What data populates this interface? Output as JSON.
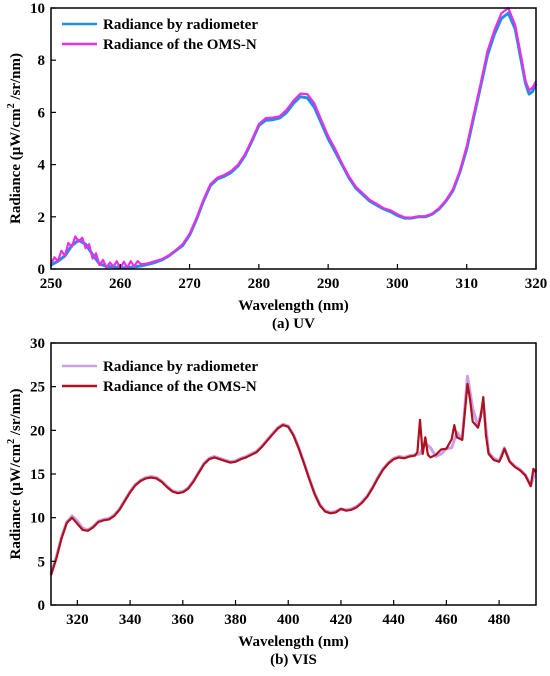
{
  "chart_data": [
    {
      "type": "line",
      "caption": "(a) UV",
      "xlabel": "Wavelength (nm)",
      "ylabel_main": "Radiance (μW/cm",
      "ylabel_sup": "2",
      "ylabel_tail": " /sr/nm)",
      "xlim": [
        250,
        320
      ],
      "ylim": [
        0,
        10
      ],
      "xticks": [
        250,
        260,
        270,
        280,
        290,
        300,
        310,
        320
      ],
      "yticks": [
        0,
        2,
        4,
        6,
        8,
        10
      ],
      "grid": false,
      "legend_position": "top-left",
      "series": [
        {
          "name": "Radiance by radiometer",
          "color": "#1f8fe0",
          "x": [
            250,
            251,
            252,
            253,
            254,
            255,
            256,
            257,
            258,
            259,
            260,
            261,
            262,
            263,
            264,
            265,
            266,
            267,
            268,
            269,
            270,
            271,
            272,
            273,
            274,
            275,
            276,
            277,
            278,
            279,
            280,
            281,
            282,
            283,
            284,
            285,
            286,
            287,
            288,
            289,
            290,
            291,
            292,
            293,
            294,
            295,
            296,
            297,
            298,
            299,
            300,
            301,
            302,
            303,
            304,
            305,
            306,
            307,
            308,
            309,
            310,
            311,
            312,
            313,
            314,
            315,
            316,
            317,
            318,
            318.5,
            319,
            319.5,
            320
          ],
          "y": [
            0.15,
            0.3,
            0.5,
            0.9,
            1.1,
            0.95,
            0.55,
            0.2,
            0.1,
            0.08,
            0.05,
            0.05,
            0.08,
            0.12,
            0.18,
            0.25,
            0.35,
            0.5,
            0.7,
            0.9,
            1.3,
            1.9,
            2.6,
            3.2,
            3.45,
            3.55,
            3.7,
            3.95,
            4.35,
            4.9,
            5.5,
            5.7,
            5.72,
            5.78,
            6.0,
            6.35,
            6.6,
            6.55,
            6.2,
            5.6,
            5.0,
            4.5,
            4.0,
            3.5,
            3.1,
            2.85,
            2.6,
            2.45,
            2.3,
            2.2,
            2.05,
            1.95,
            1.95,
            2.0,
            2.0,
            2.1,
            2.3,
            2.6,
            3.0,
            3.7,
            4.6,
            5.8,
            7.0,
            8.2,
            9.0,
            9.6,
            9.8,
            9.2,
            7.8,
            7.1,
            6.7,
            6.8,
            7.1
          ]
        },
        {
          "name": "Radiance of the OMS-N",
          "color": "#e830e8",
          "x": [
            250,
            250.5,
            251,
            251.5,
            252,
            252.5,
            253,
            253.5,
            254,
            254.5,
            255,
            255.5,
            256,
            256.5,
            257,
            257.5,
            258,
            258.5,
            259,
            259.5,
            260,
            260.5,
            261,
            261.5,
            262,
            262.5,
            263,
            264,
            265,
            266,
            267,
            268,
            269,
            270,
            271,
            272,
            273,
            274,
            275,
            276,
            277,
            278,
            279,
            280,
            281,
            282,
            283,
            284,
            285,
            286,
            287,
            288,
            289,
            290,
            291,
            292,
            293,
            294,
            295,
            296,
            297,
            298,
            299,
            300,
            301,
            302,
            303,
            304,
            305,
            306,
            307,
            308,
            309,
            310,
            311,
            312,
            313,
            314,
            315,
            316,
            317,
            318,
            318.5,
            319,
            319.5,
            320
          ],
          "y": [
            0.2,
            0.45,
            0.3,
            0.7,
            0.5,
            1.0,
            0.85,
            1.25,
            1.05,
            1.2,
            0.8,
            0.95,
            0.4,
            0.6,
            0.15,
            0.35,
            0.05,
            0.25,
            0.1,
            0.3,
            0.02,
            0.28,
            0.05,
            0.3,
            0.1,
            0.3,
            0.18,
            0.22,
            0.3,
            0.38,
            0.52,
            0.72,
            0.95,
            1.35,
            1.95,
            2.65,
            3.25,
            3.5,
            3.6,
            3.75,
            4.0,
            4.4,
            4.95,
            5.55,
            5.78,
            5.8,
            5.85,
            6.1,
            6.45,
            6.72,
            6.7,
            6.35,
            5.72,
            5.1,
            4.6,
            4.05,
            3.55,
            3.15,
            2.9,
            2.65,
            2.5,
            2.33,
            2.25,
            2.1,
            1.98,
            1.97,
            2.02,
            2.02,
            2.12,
            2.33,
            2.63,
            3.05,
            3.75,
            4.7,
            5.9,
            7.1,
            8.35,
            9.15,
            9.8,
            10.0,
            9.35,
            7.95,
            7.2,
            6.85,
            6.95,
            7.2
          ]
        }
      ]
    },
    {
      "type": "line",
      "caption": "(b) VIS",
      "xlabel": "Wavelength (nm)",
      "ylabel_main": "Radiance (μW/cm",
      "ylabel_sup": "2",
      "ylabel_tail": " /sr/nm)",
      "xlim": [
        310,
        494
      ],
      "ylim": [
        0,
        30
      ],
      "xticks": [
        320,
        340,
        360,
        380,
        400,
        420,
        440,
        460,
        480
      ],
      "yticks": [
        0,
        5,
        10,
        15,
        20,
        25,
        30
      ],
      "grid": false,
      "legend_position": "top-left",
      "series": [
        {
          "name": "Radiance by radiometer",
          "color": "#c9a0e8",
          "x": [
            310,
            312,
            314,
            316,
            318,
            320,
            322,
            324,
            326,
            328,
            330,
            332,
            334,
            336,
            338,
            340,
            342,
            344,
            346,
            348,
            350,
            352,
            354,
            356,
            358,
            360,
            362,
            364,
            366,
            368,
            370,
            372,
            374,
            376,
            378,
            380,
            382,
            384,
            386,
            388,
            390,
            392,
            394,
            396,
            398,
            400,
            402,
            404,
            406,
            408,
            410,
            412,
            414,
            416,
            418,
            420,
            422,
            424,
            426,
            428,
            430,
            432,
            434,
            436,
            438,
            440,
            442,
            444,
            446,
            448,
            450,
            452,
            454,
            456,
            458,
            460,
            462,
            464,
            466,
            468,
            470,
            472,
            474,
            476,
            478,
            480,
            482,
            484,
            486,
            488,
            490,
            492,
            494
          ],
          "y": [
            3.6,
            5.5,
            7.8,
            9.5,
            10.2,
            9.6,
            8.8,
            8.6,
            9.0,
            9.6,
            9.8,
            9.9,
            10.3,
            11.0,
            12.0,
            13.0,
            13.8,
            14.3,
            14.6,
            14.7,
            14.6,
            14.2,
            13.6,
            13.1,
            12.9,
            13.0,
            13.4,
            14.2,
            15.2,
            16.2,
            16.8,
            17.0,
            16.8,
            16.6,
            16.4,
            16.5,
            16.8,
            17.0,
            17.3,
            17.6,
            18.2,
            18.9,
            19.6,
            20.3,
            20.7,
            20.5,
            19.5,
            18.0,
            16.3,
            14.5,
            12.8,
            11.5,
            10.8,
            10.6,
            10.7,
            11.0,
            10.9,
            11.0,
            11.3,
            11.8,
            12.5,
            13.5,
            14.6,
            15.6,
            16.3,
            16.8,
            17.0,
            16.9,
            17.1,
            17.2,
            17.3,
            18.5,
            18.0,
            17.0,
            17.3,
            17.9,
            18.0,
            19.8,
            19.0,
            26.2,
            22.5,
            20.5,
            23.0,
            17.5,
            16.8,
            16.5,
            18.0,
            16.5,
            15.9,
            15.5,
            14.9,
            13.7,
            15.5
          ]
        },
        {
          "name": "Radiance of the OMS-N",
          "color": "#b0101e",
          "x": [
            310,
            312,
            314,
            316,
            318,
            320,
            322,
            324,
            326,
            328,
            330,
            332,
            334,
            336,
            338,
            340,
            342,
            344,
            346,
            348,
            350,
            352,
            354,
            356,
            358,
            360,
            362,
            364,
            366,
            368,
            370,
            372,
            374,
            376,
            378,
            380,
            382,
            384,
            386,
            388,
            390,
            392,
            394,
            396,
            398,
            400,
            402,
            404,
            406,
            408,
            410,
            412,
            414,
            416,
            418,
            420,
            422,
            424,
            426,
            428,
            430,
            432,
            434,
            436,
            438,
            440,
            442,
            444,
            446,
            448,
            449,
            450,
            451,
            452,
            453,
            454,
            456,
            458,
            460,
            462,
            463,
            464,
            466,
            467,
            468,
            469,
            470,
            472,
            473,
            474,
            475,
            476,
            478,
            480,
            481,
            482,
            484,
            486,
            488,
            490,
            492,
            493,
            494
          ],
          "y": [
            3.4,
            5.3,
            7.6,
            9.4,
            10.0,
            9.3,
            8.6,
            8.5,
            8.9,
            9.5,
            9.7,
            9.8,
            10.2,
            10.9,
            11.9,
            12.9,
            13.7,
            14.2,
            14.5,
            14.6,
            14.5,
            14.1,
            13.5,
            13.0,
            12.8,
            12.9,
            13.3,
            14.1,
            15.1,
            16.1,
            16.7,
            16.9,
            16.7,
            16.5,
            16.3,
            16.4,
            16.7,
            16.9,
            17.2,
            17.5,
            18.1,
            18.8,
            19.5,
            20.2,
            20.6,
            20.4,
            19.4,
            17.9,
            16.2,
            14.4,
            12.7,
            11.4,
            10.7,
            10.5,
            10.6,
            11.0,
            10.8,
            10.9,
            11.2,
            11.7,
            12.4,
            13.4,
            14.5,
            15.5,
            16.2,
            16.7,
            16.9,
            16.8,
            17.0,
            17.1,
            17.5,
            21.2,
            17.3,
            19.2,
            17.2,
            16.9,
            17.2,
            17.8,
            17.9,
            19.0,
            20.6,
            19.2,
            18.9,
            22.0,
            25.3,
            23.5,
            21.0,
            20.3,
            21.5,
            23.8,
            19.5,
            17.3,
            16.6,
            16.4,
            17.0,
            17.9,
            16.4,
            15.8,
            15.4,
            14.8,
            13.6,
            15.6,
            15.2
          ]
        }
      ]
    }
  ]
}
